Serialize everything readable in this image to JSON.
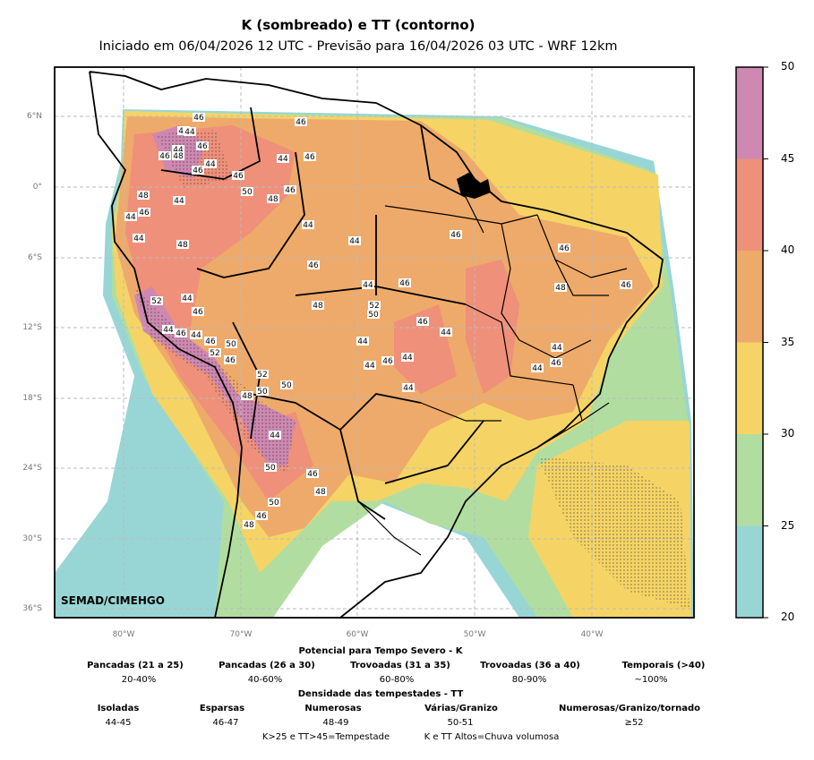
{
  "title": "K (sombreado) e TT (contorno)",
  "subtitle": "Iniciado em 06/04/2026 12 UTC - Previsão para 16/04/2026 03 UTC - WRF 12km",
  "credit": "SEMAD/CIMEHGO",
  "lat_labels": [
    "6°N",
    "0°",
    "6°S",
    "12°S",
    "18°S",
    "24°S",
    "30°S",
    "36°S"
  ],
  "lon_labels": [
    "80°W",
    "70°W",
    "60°W",
    "50°W",
    "40°W"
  ],
  "colorbar": {
    "ticks": [
      "50",
      "45",
      "40",
      "35",
      "30",
      "25",
      "20"
    ],
    "colors": [
      "#ce88b1",
      "#ef907a",
      "#eeaa6a",
      "#f5d465",
      "#b1dea0",
      "#98d6d6"
    ]
  },
  "tt_labels": [
    "46",
    "48",
    "44",
    "44",
    "46",
    "46",
    "48",
    "44",
    "46",
    "46",
    "50",
    "48",
    "44",
    "44",
    "46",
    "44",
    "48",
    "48",
    "46",
    "44",
    "46",
    "46",
    "52",
    "44",
    "46",
    "44",
    "46",
    "44",
    "46",
    "50",
    "52",
    "46",
    "52",
    "50",
    "50",
    "48",
    "44",
    "44",
    "46",
    "44",
    "46",
    "48",
    "52",
    "50",
    "44",
    "44",
    "44",
    "46",
    "44",
    "44",
    "50",
    "46",
    "48",
    "50",
    "46",
    "48",
    "46",
    "46",
    "48",
    "46",
    "46",
    "44",
    "44",
    "46",
    "44"
  ],
  "legend": {
    "k_title": "Potencial para Tempo Severo - K",
    "k_items": [
      {
        "label": "Pancadas (21 a 25)",
        "value": "20-40%"
      },
      {
        "label": "Pancadas (26 a 30)",
        "value": "40-60%"
      },
      {
        "label": "Trovoadas (31 a 35)",
        "value": "60-80%"
      },
      {
        "label": "Trovoadas (36 a 40)",
        "value": "80-90%"
      },
      {
        "label": "Temporais (>40)",
        "value": "~100%"
      }
    ],
    "tt_title": "Densidade das tempestades - TT",
    "tt_items": [
      {
        "label": "Isoladas",
        "value": "44-45"
      },
      {
        "label": "Esparsas",
        "value": "46-47"
      },
      {
        "label": "Numerosas",
        "value": "48-49"
      },
      {
        "label": "Várias/Granizo",
        "value": "50-51"
      },
      {
        "label": "Numerosas/Granizo/tornado",
        "value": "≥52"
      }
    ],
    "footnote_1": "K>25 e TT>45=Tempestade",
    "footnote_2": "K e TT Altos=Chuva volumosa"
  }
}
